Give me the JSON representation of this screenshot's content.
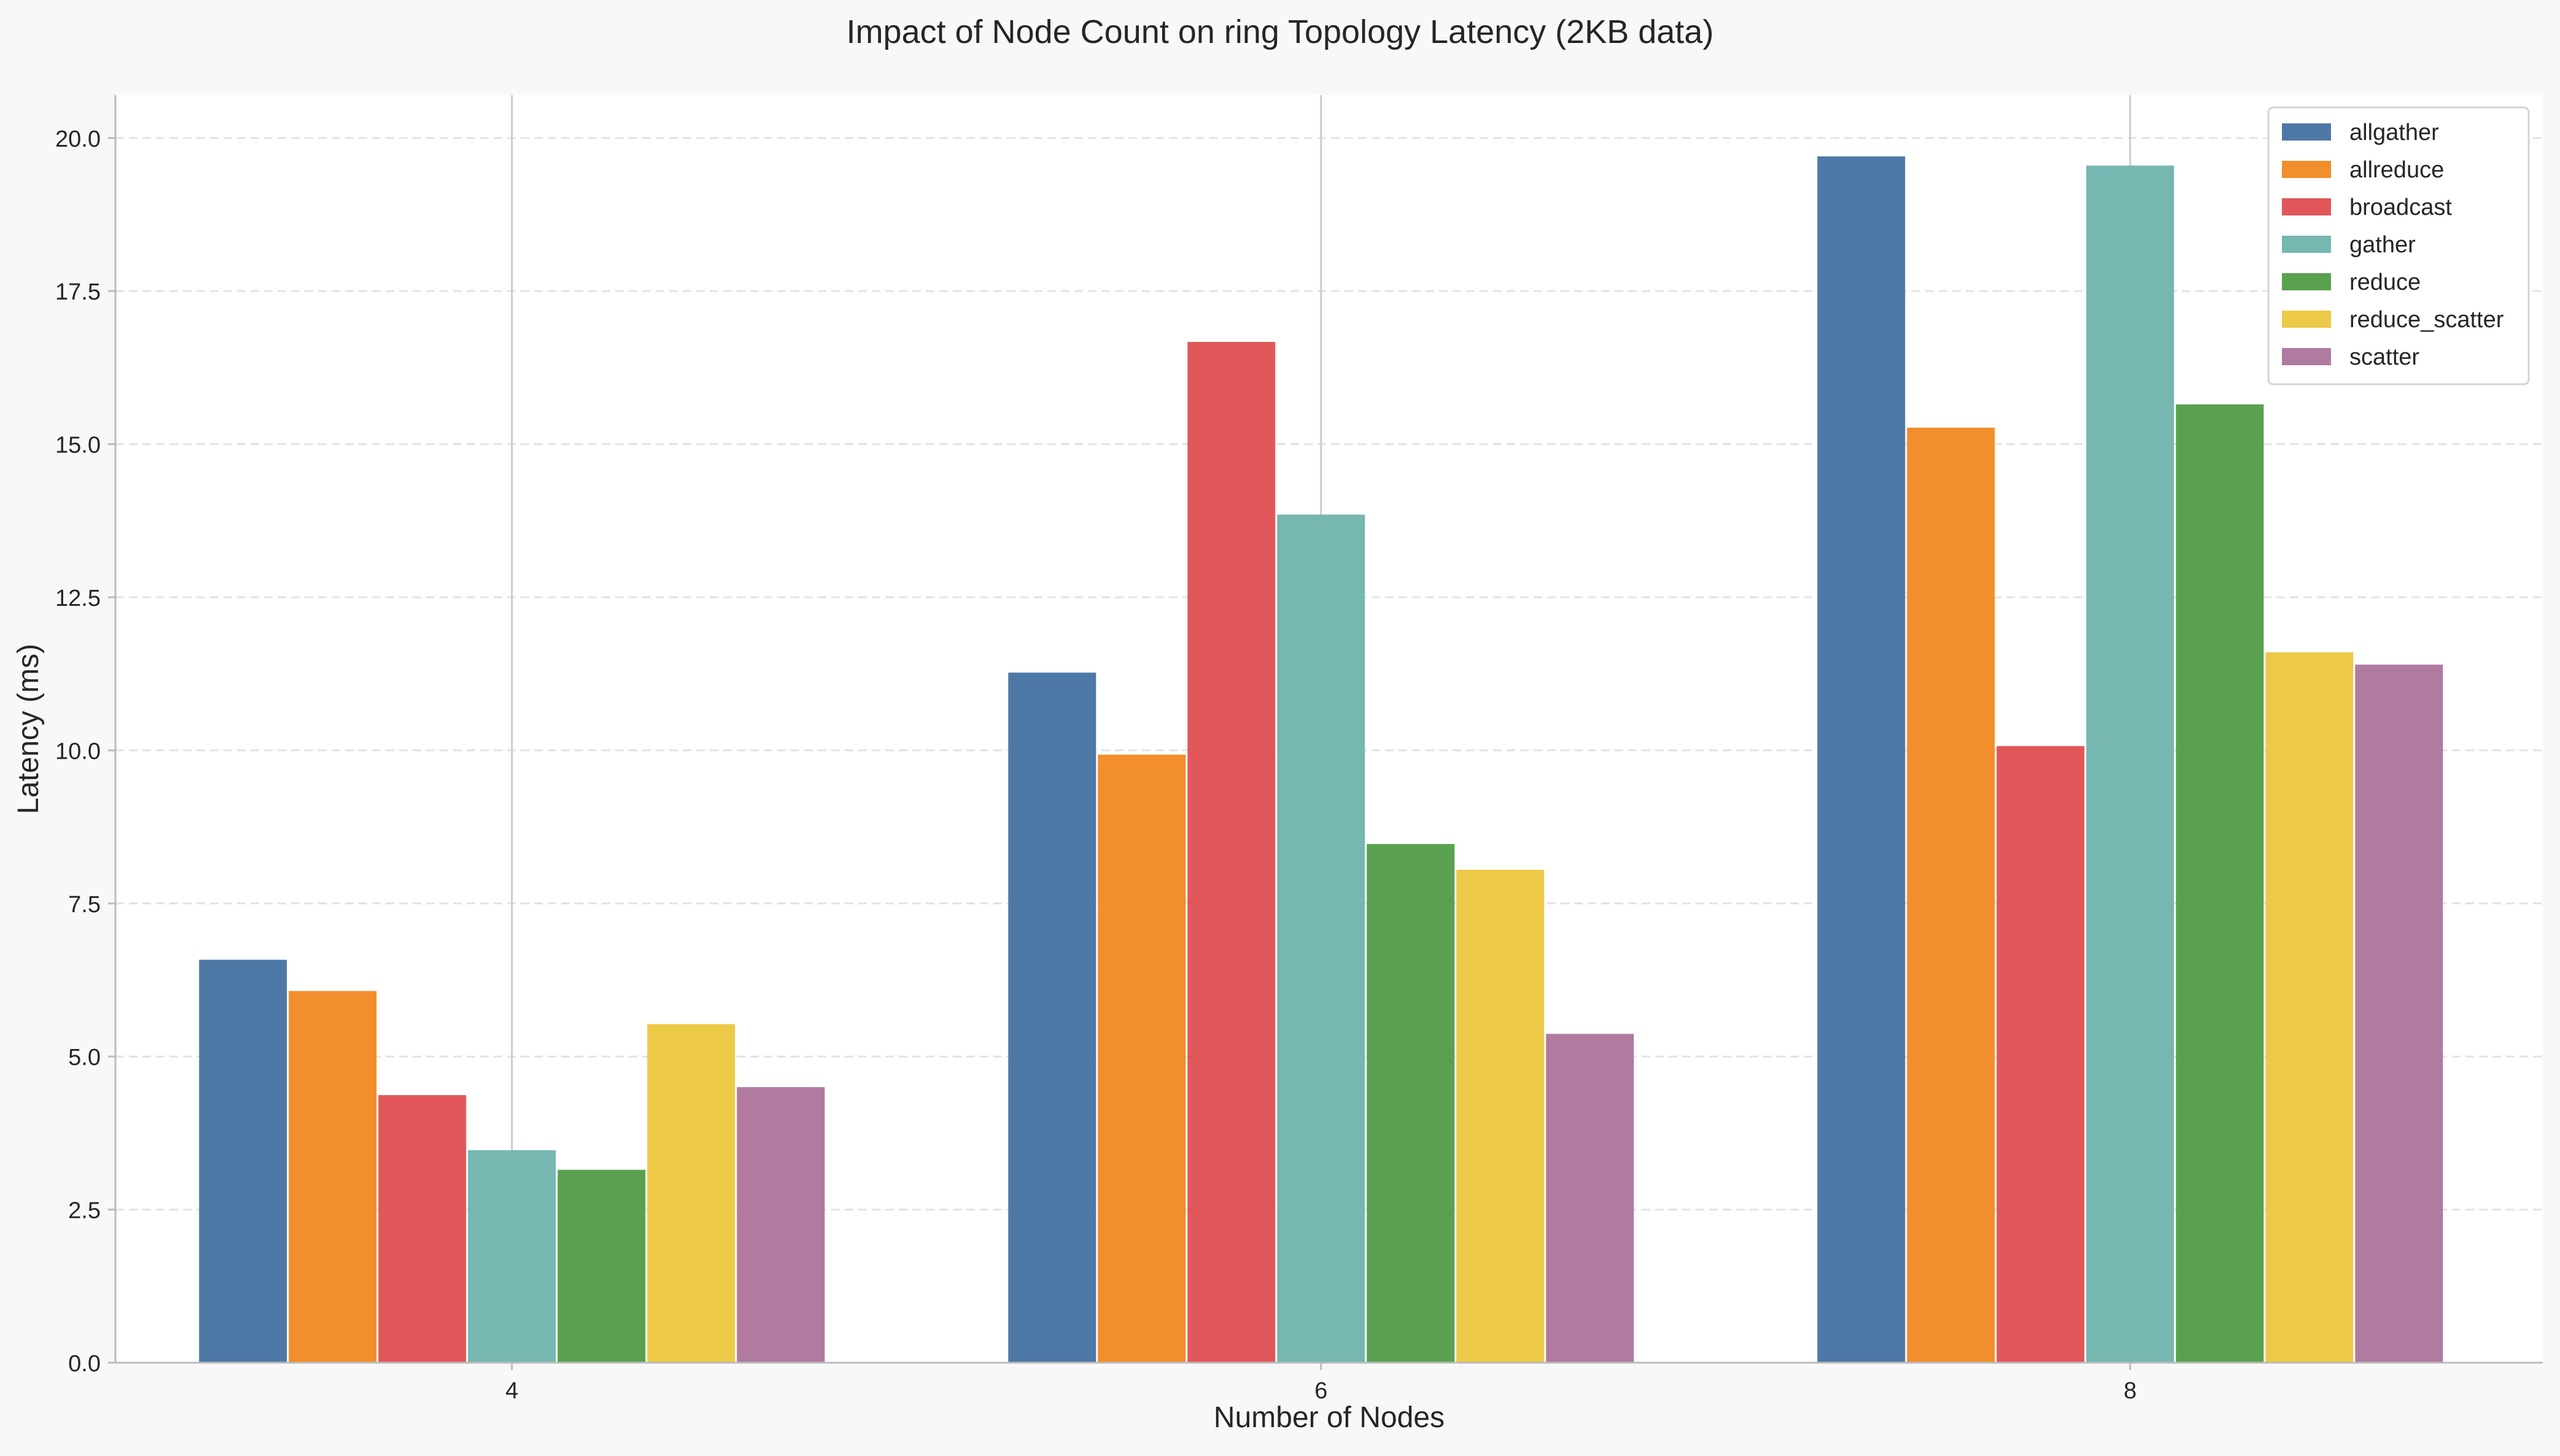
{
  "chart_data": {
    "type": "bar",
    "title": "Impact of Node Count on ring Topology Latency (2KB data)",
    "xlabel": "Number of Nodes",
    "ylabel": "Latency (ms)",
    "categories": [
      "4",
      "6",
      "8"
    ],
    "ylim": [
      0,
      20.7
    ],
    "yticks": [
      "0.0",
      "2.5",
      "5.0",
      "7.5",
      "10.0",
      "12.5",
      "15.0",
      "17.5",
      "20.0"
    ],
    "ytick_values": [
      0,
      2.5,
      5,
      7.5,
      10,
      12.5,
      15,
      17.5,
      20
    ],
    "grid": "horizontal dashed",
    "legend_position": "top-right",
    "series": [
      {
        "name": "allgather",
        "color": "#4e79a7",
        "values": [
          6.58,
          11.27,
          19.7
        ]
      },
      {
        "name": "allreduce",
        "color": "#f28e2b",
        "values": [
          6.07,
          9.93,
          15.27
        ]
      },
      {
        "name": "broadcast",
        "color": "#e15759",
        "values": [
          4.37,
          16.67,
          10.07
        ]
      },
      {
        "name": "gather",
        "color": "#76b7b2",
        "values": [
          3.47,
          13.85,
          19.55
        ]
      },
      {
        "name": "reduce",
        "color": "#59a14f",
        "values": [
          3.15,
          8.47,
          15.65
        ]
      },
      {
        "name": "reduce_scatter",
        "color": "#edc948",
        "values": [
          5.53,
          8.05,
          11.6
        ]
      },
      {
        "name": "scatter",
        "color": "#b07aa1",
        "values": [
          4.5,
          5.37,
          11.4
        ]
      }
    ]
  }
}
